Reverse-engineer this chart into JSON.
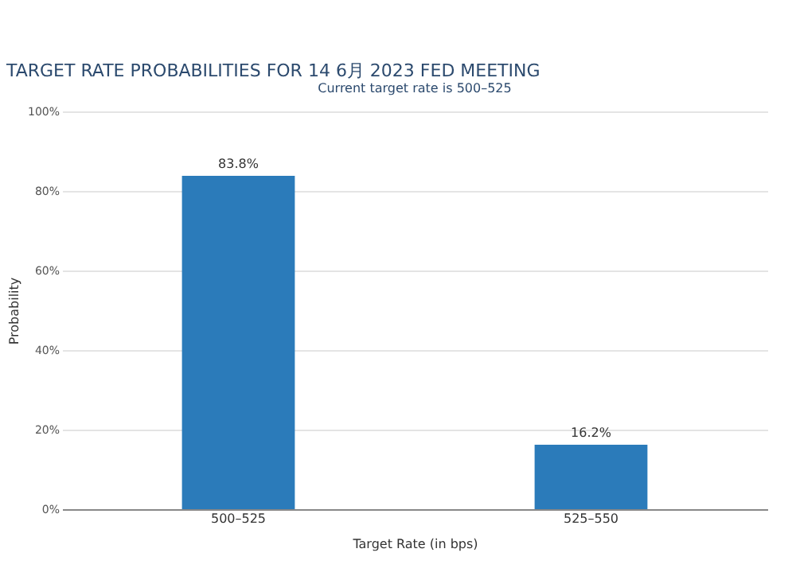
{
  "chart_data": {
    "type": "bar",
    "title": "TARGET RATE PROBABILITIES FOR 14 6月 2023 FED MEETING",
    "subtitle": "Current target rate is 500–525",
    "xlabel": "Target Rate (in bps)",
    "ylabel": "Probability",
    "categories": [
      "500–525",
      "525–550"
    ],
    "values": [
      83.8,
      16.2
    ],
    "value_labels": [
      "83.8%",
      "16.2%"
    ],
    "color": "#2b7bba",
    "ylim": [
      0,
      100
    ],
    "yticks": [
      {
        "value": 0,
        "label": "0%"
      },
      {
        "value": 20,
        "label": "20%"
      },
      {
        "value": 40,
        "label": "40%"
      },
      {
        "value": 60,
        "label": "60%"
      },
      {
        "value": 80,
        "label": "80%"
      },
      {
        "value": 100,
        "label": "100%"
      }
    ],
    "grid": "y"
  }
}
